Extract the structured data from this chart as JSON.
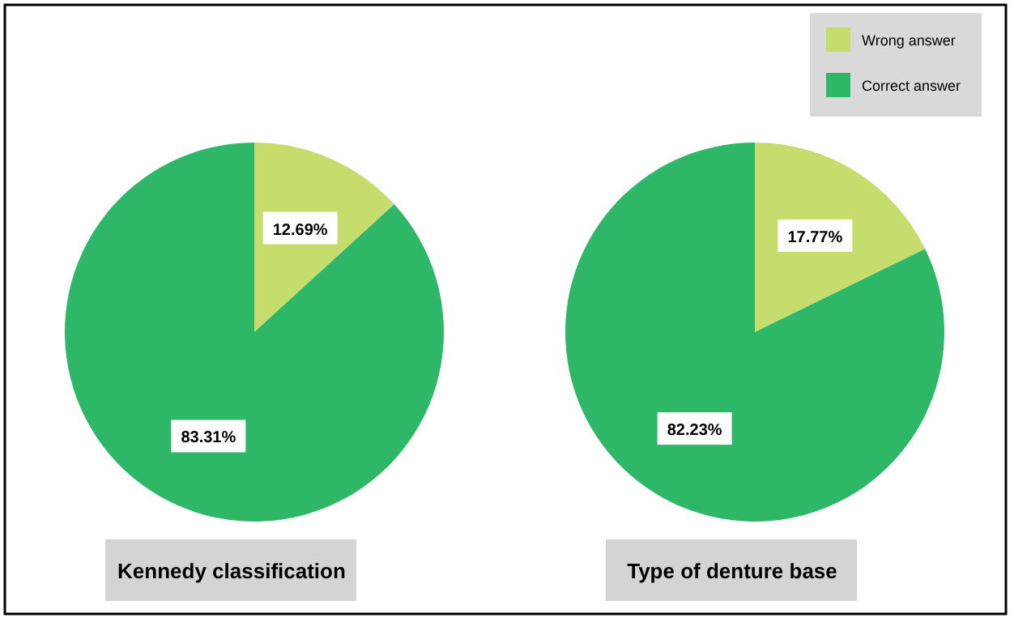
{
  "chart_data": [
    {
      "type": "pie",
      "title": "Kennedy classification",
      "categories": [
        null,
        null
      ],
      "values": [
        12.69,
        83.31
      ],
      "value_labels": [
        "12.69%",
        "83.31%"
      ],
      "colors": [
        "#c6dc6c",
        "#2eb767"
      ],
      "legend": false
    },
    {
      "type": "pie",
      "title": "Type of denture base",
      "categories": [
        "Wrong answer",
        "Correct answer"
      ],
      "values": [
        17.77,
        82.23
      ],
      "value_labels": [
        "17.77%",
        "82.23%"
      ],
      "colors": [
        "#c6dc6c",
        "#2eb767"
      ],
      "legend": "top right"
    }
  ]
}
